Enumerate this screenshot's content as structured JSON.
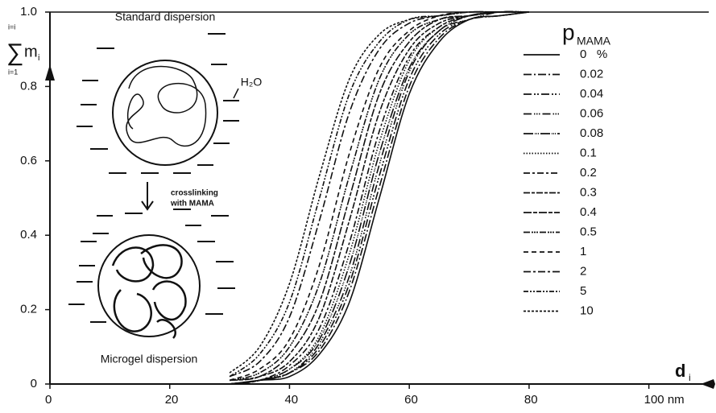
{
  "chart_data": {
    "type": "line",
    "x_label": {
      "variable": "d",
      "subscript": "i"
    },
    "y_label": {
      "symbol": "∑",
      "variable": "m",
      "subscript": "i",
      "upper": "i=i",
      "lower": "i=1"
    },
    "legend_title": {
      "variable": "p",
      "subscript": "MAMA"
    },
    "annotations": {
      "top": "Standard dispersion",
      "water": "H₂O",
      "step_1": "crosslinking",
      "step_2": "with MAMA",
      "bottom": "Microgel dispersion"
    },
    "x": [
      30,
      35,
      40,
      45,
      50,
      55,
      60,
      65,
      70,
      75,
      80
    ],
    "xlim": [
      0,
      110
    ],
    "ylim": [
      0,
      1
    ],
    "xticks": [
      0,
      20,
      40,
      60,
      80,
      {
        "value": 100,
        "label": "100 nm"
      }
    ],
    "yticks": [
      0,
      0.2,
      0.4,
      0.6,
      0.8,
      {
        "value": 1,
        "label": "1.0"
      }
    ],
    "series": [
      {
        "name": "0   %",
        "color": "#111",
        "dash": "none",
        "values": [
          0.0,
          0.01,
          0.02,
          0.08,
          0.22,
          0.5,
          0.78,
          0.92,
          0.98,
          0.99,
          1.0
        ]
      },
      {
        "name": "0.02",
        "color": "#111",
        "dash": "10 3 2 3",
        "values": [
          0.0,
          0.01,
          0.03,
          0.09,
          0.25,
          0.53,
          0.8,
          0.93,
          0.98,
          0.99,
          1.0
        ]
      },
      {
        "name": "0.04",
        "color": "#111",
        "dash": "10 3 2 2 2 3",
        "values": [
          0.0,
          0.01,
          0.03,
          0.1,
          0.27,
          0.56,
          0.82,
          0.94,
          0.98,
          0.99,
          1.0
        ]
      },
      {
        "name": "0.06",
        "color": "#111",
        "dash": "10 3 1.5 1.5 1.5 1.5 1.5 3",
        "values": [
          0.0,
          0.01,
          0.03,
          0.11,
          0.29,
          0.59,
          0.84,
          0.95,
          0.98,
          1.0,
          1.0
        ]
      },
      {
        "name": "0.08",
        "color": "#111",
        "dash": "12 2 1 1 1 1 1 2",
        "values": [
          0.0,
          0.01,
          0.04,
          0.12,
          0.32,
          0.62,
          0.85,
          0.95,
          0.99,
          1.0,
          1.0
        ]
      },
      {
        "name": "0.1",
        "color": "#111",
        "dash": "1.5 2",
        "values": [
          0.0,
          0.01,
          0.04,
          0.13,
          0.35,
          0.65,
          0.87,
          0.96,
          0.99,
          1.0,
          1.0
        ]
      },
      {
        "name": "0.2",
        "color": "#111",
        "dash": "8 3 3 3",
        "values": [
          0.0,
          0.01,
          0.05,
          0.15,
          0.38,
          0.68,
          0.88,
          0.96,
          0.99,
          1.0,
          1.0
        ]
      },
      {
        "name": "0.3",
        "color": "#111",
        "dash": "8 2 4 2",
        "values": [
          0.01,
          0.02,
          0.06,
          0.18,
          0.44,
          0.73,
          0.9,
          0.97,
          0.99,
          1.0,
          1.0
        ]
      },
      {
        "name": "0.4",
        "color": "#111",
        "dash": "10 2 5 2",
        "values": [
          0.01,
          0.02,
          0.08,
          0.22,
          0.5,
          0.78,
          0.92,
          0.98,
          0.99,
          1.0,
          1.0
        ]
      },
      {
        "name": "0.5",
        "color": "#111",
        "dash": "8 2 2 1 2 1 2 2",
        "values": [
          0.01,
          0.03,
          0.1,
          0.27,
          0.56,
          0.82,
          0.94,
          0.98,
          0.99,
          1.0,
          1.0
        ]
      },
      {
        "name": "1",
        "color": "#111",
        "dash": "6 4",
        "values": [
          0.01,
          0.04,
          0.12,
          0.32,
          0.62,
          0.85,
          0.95,
          0.99,
          1.0,
          1.0,
          1.0
        ]
      },
      {
        "name": "2",
        "color": "#111",
        "dash": "9 3 3 3",
        "values": [
          0.02,
          0.06,
          0.18,
          0.44,
          0.73,
          0.9,
          0.97,
          0.99,
          1.0,
          1.0,
          1.0
        ]
      },
      {
        "name": "5",
        "color": "#111",
        "dash": "6 2 2 2 2 2",
        "values": [
          0.02,
          0.08,
          0.22,
          0.5,
          0.78,
          0.92,
          0.98,
          0.99,
          1.0,
          1.0,
          1.0
        ]
      },
      {
        "name": "10",
        "color": "#111",
        "dash": "3 2",
        "values": [
          0.03,
          0.1,
          0.27,
          0.56,
          0.82,
          0.94,
          0.98,
          0.99,
          1.0,
          1.0,
          1.0
        ]
      }
    ]
  }
}
